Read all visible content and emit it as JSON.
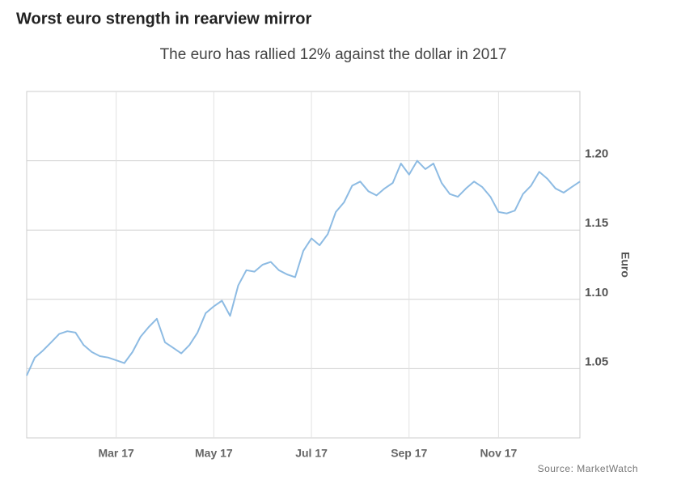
{
  "chart_data": {
    "type": "line",
    "title": "Worst euro strength in rearview mirror",
    "subtitle": "The euro has rallied 12% against the dollar in 2017",
    "y_axis_label": "Euro",
    "source": "Source: MarketWatch",
    "categories": [
      null,
      null,
      null,
      null,
      null,
      null,
      null,
      null,
      null,
      null,
      null,
      "Mar 17",
      null,
      null,
      null,
      null,
      null,
      null,
      null,
      null,
      null,
      null,
      null,
      "May 17",
      null,
      null,
      null,
      null,
      null,
      null,
      null,
      null,
      null,
      null,
      null,
      "Jul 17",
      null,
      null,
      null,
      null,
      null,
      null,
      null,
      null,
      null,
      null,
      null,
      "Sep 17",
      null,
      null,
      null,
      null,
      null,
      null,
      null,
      null,
      null,
      null,
      "Nov 17",
      null,
      null,
      null,
      null,
      null,
      null,
      null,
      null,
      null,
      null
    ],
    "series": [
      {
        "name": "Euro",
        "color": "#8dbbe3",
        "values": [
          1.045,
          1.058,
          1.063,
          1.069,
          1.075,
          1.077,
          1.076,
          1.067,
          1.062,
          1.059,
          1.058,
          1.056,
          1.054,
          1.062,
          1.073,
          1.08,
          1.086,
          1.069,
          1.065,
          1.061,
          1.067,
          1.076,
          1.09,
          1.095,
          1.099,
          1.088,
          1.11,
          1.121,
          1.12,
          1.125,
          1.127,
          1.121,
          1.118,
          1.116,
          1.135,
          1.144,
          1.139,
          1.147,
          1.163,
          1.17,
          1.182,
          1.185,
          1.178,
          1.175,
          1.18,
          1.184,
          1.198,
          1.19,
          1.2,
          1.194,
          1.198,
          1.184,
          1.176,
          1.174,
          1.18,
          1.185,
          1.181,
          1.174,
          1.163,
          1.162,
          1.164,
          1.176,
          1.182,
          1.192,
          1.187,
          1.18,
          1.177,
          1.181,
          1.185
        ]
      }
    ],
    "ylim": [
      1.0,
      1.25
    ],
    "yticks": [
      1.05,
      {
        "value": 1.1,
        "label": "1.10"
      },
      1.15,
      {
        "value": 1.2,
        "label": "1.20"
      }
    ],
    "grid": true
  }
}
